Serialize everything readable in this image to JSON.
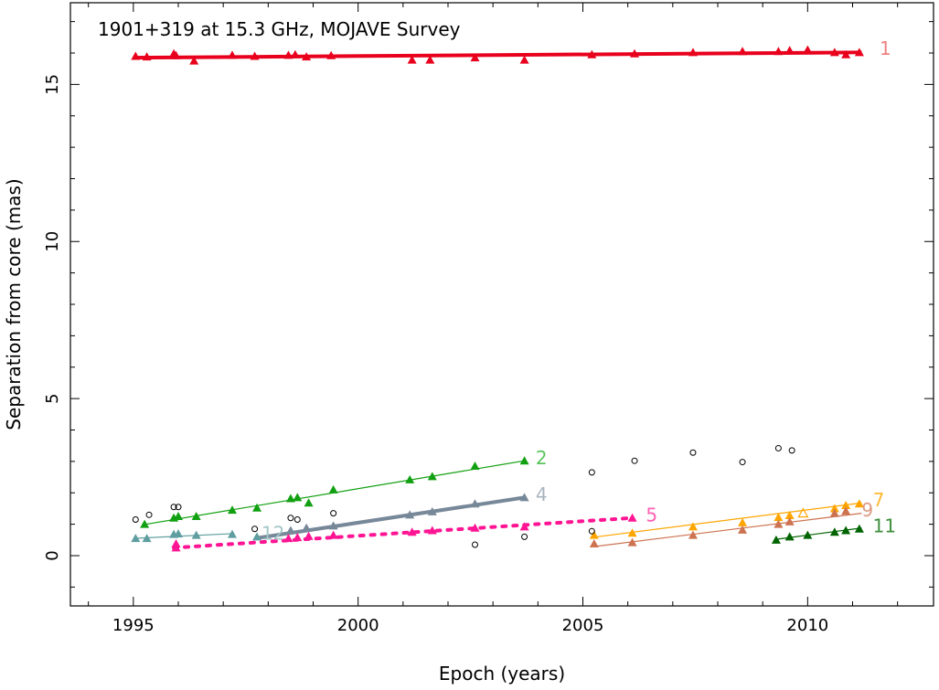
{
  "chart_data": {
    "type": "scatter",
    "title": "1901+319 at 15.3 GHz, MOJAVE Survey",
    "xlabel": "Epoch (years)",
    "ylabel": "Separation from core (mas)",
    "xlim": [
      1993.6,
      2012.8
    ],
    "ylim": [
      -1.6,
      17.6
    ],
    "xticks": [
      1995,
      2000,
      2005,
      2010
    ],
    "yticks": [
      0,
      5,
      10,
      15
    ],
    "grid": false,
    "series": [
      {
        "name": "1",
        "color": "#e8001c",
        "label_color": "#f08080",
        "points": [
          [
            1995.05,
            15.9
          ],
          [
            1995.3,
            15.88
          ],
          [
            1995.9,
            15.98
          ],
          [
            1995.95,
            15.92
          ],
          [
            1996.35,
            15.75
          ],
          [
            1997.2,
            15.93
          ],
          [
            1997.7,
            15.9
          ],
          [
            1998.45,
            15.93
          ],
          [
            1998.6,
            15.95
          ],
          [
            1998.85,
            15.88
          ],
          [
            1999.4,
            15.92
          ],
          [
            2001.2,
            15.78
          ],
          [
            2001.6,
            15.78
          ],
          [
            2002.6,
            15.85
          ],
          [
            2003.7,
            15.78
          ],
          [
            2005.2,
            15.95
          ],
          [
            2006.15,
            15.98
          ],
          [
            2007.45,
            16.02
          ],
          [
            2008.55,
            16.05
          ],
          [
            2009.35,
            16.05
          ],
          [
            2009.6,
            16.08
          ],
          [
            2010.0,
            16.1
          ],
          [
            2010.6,
            16.02
          ],
          [
            2010.85,
            15.95
          ],
          [
            2011.15,
            16.02
          ]
        ],
        "fit": [
          [
            1995.0,
            15.85
          ],
          [
            2011.2,
            16.02
          ]
        ],
        "fit_style": "thick",
        "label_pos": [
          2011.6,
          16.15
        ]
      },
      {
        "name": "2",
        "color": "#11a011",
        "label_color": "#5cc45c",
        "points": [
          [
            1995.25,
            1.0
          ],
          [
            1995.9,
            1.2
          ],
          [
            1996.0,
            1.25
          ],
          [
            1996.4,
            1.25
          ],
          [
            1997.2,
            1.45
          ],
          [
            1997.75,
            1.52
          ],
          [
            1998.5,
            1.82
          ],
          [
            1998.65,
            1.85
          ],
          [
            1998.9,
            1.68
          ],
          [
            1999.45,
            2.1
          ],
          [
            2001.15,
            2.42
          ],
          [
            2001.65,
            2.52
          ],
          [
            2002.6,
            2.85
          ],
          [
            2003.7,
            3.02
          ]
        ],
        "fit": [
          [
            1995.2,
            0.98
          ],
          [
            2003.7,
            3.02
          ]
        ],
        "fit_style": "thin",
        "label_pos": [
          2003.95,
          3.12
        ]
      },
      {
        "name": "4",
        "color": "#778899",
        "label_color": "#a9b4be",
        "points": [
          [
            1998.5,
            0.8
          ],
          [
            1998.85,
            0.88
          ],
          [
            1999.45,
            0.95
          ],
          [
            2001.15,
            1.3
          ],
          [
            2001.65,
            1.4
          ],
          [
            2002.6,
            1.65
          ],
          [
            2003.7,
            1.85
          ]
        ],
        "fit": [
          [
            1997.7,
            0.55
          ],
          [
            2003.7,
            1.85
          ]
        ],
        "fit_style": "thick",
        "label_pos": [
          2003.95,
          1.95
        ]
      },
      {
        "name": "5",
        "color": "#ff1493",
        "label_color": "#ff5fb4",
        "points": [
          [
            1995.95,
            0.25
          ],
          [
            1995.95,
            0.38
          ],
          [
            1998.45,
            0.55
          ],
          [
            1998.65,
            0.58
          ],
          [
            1998.9,
            0.62
          ],
          [
            1999.45,
            0.65
          ],
          [
            2001.2,
            0.75
          ],
          [
            2001.65,
            0.8
          ],
          [
            2002.6,
            0.88
          ],
          [
            2003.7,
            0.92
          ],
          [
            2006.1,
            1.2
          ]
        ],
        "fit": [
          [
            1995.9,
            0.25
          ],
          [
            2006.1,
            1.2
          ]
        ],
        "fit_style": "dotted",
        "label_pos": [
          2006.4,
          1.3
        ]
      },
      {
        "name": "7",
        "color": "#ffa500",
        "label_color": "#ffb833",
        "points": [
          [
            2005.25,
            0.65
          ],
          [
            2006.1,
            0.72
          ],
          [
            2007.45,
            0.92
          ],
          [
            2008.55,
            1.05
          ],
          [
            2009.35,
            1.22
          ],
          [
            2009.6,
            1.28
          ],
          [
            2010.6,
            1.5
          ],
          [
            2010.85,
            1.6
          ],
          [
            2011.15,
            1.65
          ]
        ],
        "open_points": [
          [
            2009.9,
            1.35
          ]
        ],
        "fit": [
          [
            2005.2,
            0.58
          ],
          [
            2011.2,
            1.68
          ]
        ],
        "fit_style": "thin",
        "label_pos": [
          2011.45,
          1.78
        ]
      },
      {
        "name": "9",
        "color": "#cd7350",
        "label_color": "#dc9a82",
        "points": [
          [
            2005.25,
            0.38
          ],
          [
            2006.1,
            0.42
          ],
          [
            2007.45,
            0.65
          ],
          [
            2008.55,
            0.82
          ],
          [
            2009.35,
            1.0
          ],
          [
            2009.6,
            1.08
          ],
          [
            2010.6,
            1.35
          ],
          [
            2010.85,
            1.42
          ]
        ],
        "fit": [
          [
            2005.2,
            0.28
          ],
          [
            2011.2,
            1.35
          ]
        ],
        "fit_style": "thin",
        "label_pos": [
          2011.2,
          1.45
        ]
      },
      {
        "name": "11",
        "color": "#006400",
        "label_color": "#3d8f3d",
        "points": [
          [
            2009.3,
            0.5
          ],
          [
            2009.6,
            0.6
          ],
          [
            2010.0,
            0.65
          ],
          [
            2010.6,
            0.75
          ],
          [
            2010.85,
            0.8
          ],
          [
            2011.15,
            0.85
          ]
        ],
        "fit": [
          [
            2009.3,
            0.52
          ],
          [
            2011.2,
            0.88
          ]
        ],
        "fit_style": "thin",
        "label_pos": [
          2011.45,
          0.95
        ]
      },
      {
        "name": "12",
        "color": "#5f9ea0",
        "label_color": "#a3c7c8",
        "points": [
          [
            1995.05,
            0.55
          ],
          [
            1995.3,
            0.55
          ],
          [
            1995.9,
            0.68
          ],
          [
            1996.0,
            0.7
          ],
          [
            1996.4,
            0.65
          ],
          [
            1997.2,
            0.68
          ],
          [
            1997.75,
            0.6
          ]
        ],
        "fit": [
          [
            1995.0,
            0.55
          ],
          [
            1997.2,
            0.7
          ]
        ],
        "fit_style": "thin",
        "label_pos": [
          1997.85,
          0.72
        ]
      }
    ],
    "unassociated": [
      [
        1995.05,
        1.15
      ],
      [
        1995.35,
        1.3
      ],
      [
        1995.9,
        1.55
      ],
      [
        1996.0,
        1.55
      ],
      [
        1997.7,
        0.85
      ],
      [
        1998.5,
        1.2
      ],
      [
        1998.65,
        1.15
      ],
      [
        1999.45,
        1.35
      ],
      [
        2002.6,
        0.35
      ],
      [
        2003.7,
        0.6
      ],
      [
        2005.2,
        2.65
      ],
      [
        2005.2,
        0.78
      ],
      [
        2006.15,
        3.02
      ],
      [
        2007.45,
        3.28
      ],
      [
        2008.55,
        2.98
      ],
      [
        2009.35,
        3.42
      ],
      [
        2009.65,
        3.35
      ]
    ]
  }
}
